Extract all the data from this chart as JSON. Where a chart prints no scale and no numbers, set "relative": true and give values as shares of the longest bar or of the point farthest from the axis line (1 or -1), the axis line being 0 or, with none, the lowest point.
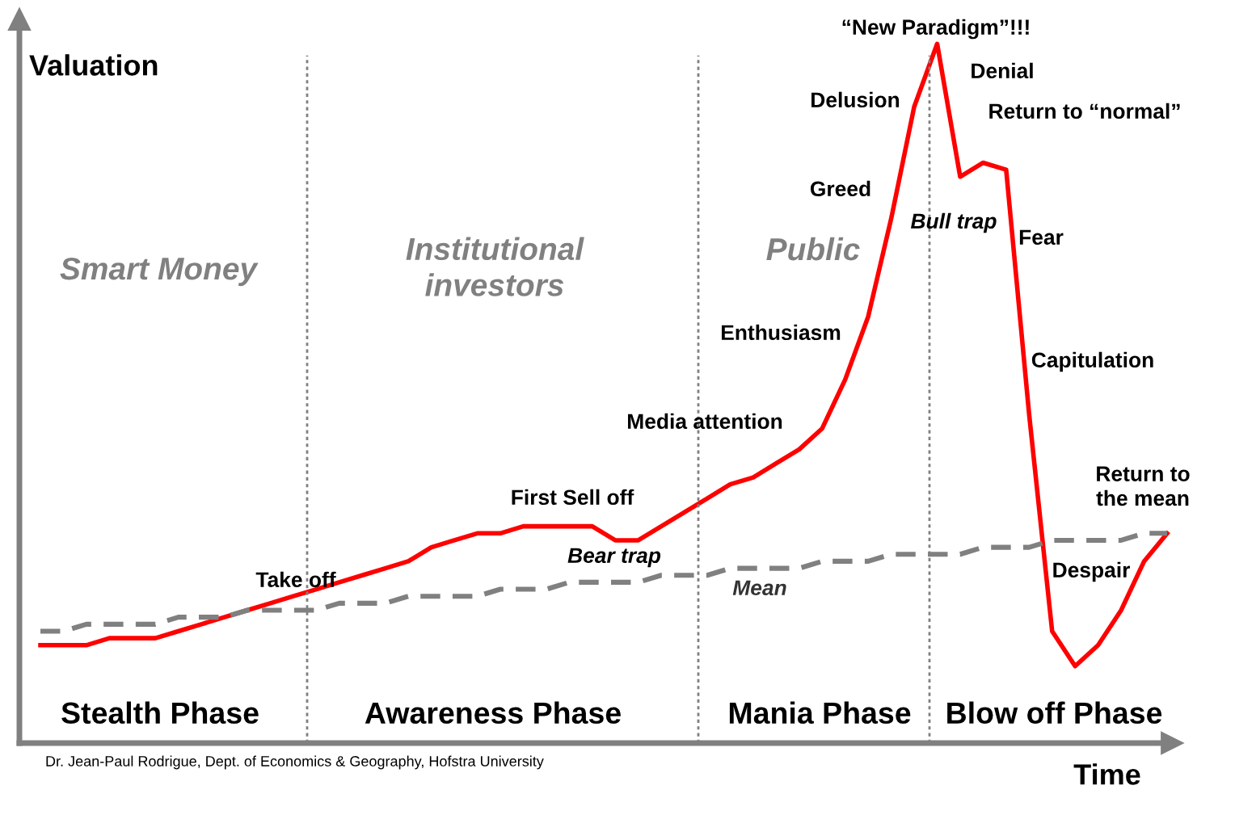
{
  "chart_data": {
    "type": "line",
    "relative": true,
    "xlabel": "Time",
    "ylabel": "Valuation",
    "grid": false,
    "legend": false,
    "marker": "none",
    "categories": [
      null,
      null,
      null,
      null,
      null,
      null,
      null,
      null,
      null,
      null,
      null,
      null,
      null,
      null,
      null,
      null,
      null,
      null,
      null,
      null,
      null,
      null,
      null,
      null,
      null,
      null,
      null,
      null,
      null,
      null,
      null,
      null,
      null,
      null,
      null,
      null,
      null,
      null,
      null,
      null,
      null,
      null,
      null,
      null,
      null,
      null,
      null,
      null,
      null,
      null
    ],
    "series": [
      {
        "color": "#ff0000",
        "line_style": "solid",
        "values": [
          0.14,
          0.14,
          0.14,
          0.15,
          0.15,
          0.15,
          0.16,
          0.17,
          0.18,
          0.19,
          0.2,
          0.21,
          0.22,
          0.23,
          0.24,
          0.25,
          0.26,
          0.28,
          0.29,
          0.3,
          0.3,
          0.31,
          0.31,
          0.31,
          0.31,
          0.29,
          0.29,
          0.31,
          0.33,
          0.35,
          0.37,
          0.38,
          0.4,
          0.42,
          0.45,
          0.52,
          0.61,
          0.75,
          0.91,
          1.0,
          0.81,
          0.83,
          0.82,
          0.47,
          0.16,
          0.11,
          0.14,
          0.19,
          0.26,
          0.3
        ]
      },
      {
        "color": "#808080",
        "line_style": "dashed",
        "values": [
          0.16,
          0.16,
          0.17,
          0.17,
          0.17,
          0.17,
          0.18,
          0.18,
          0.18,
          0.19,
          0.19,
          0.19,
          0.19,
          0.2,
          0.2,
          0.2,
          0.21,
          0.21,
          0.21,
          0.21,
          0.22,
          0.22,
          0.22,
          0.23,
          0.23,
          0.23,
          0.23,
          0.24,
          0.24,
          0.24,
          0.25,
          0.25,
          0.25,
          0.25,
          0.26,
          0.26,
          0.26,
          0.27,
          0.27,
          0.27,
          0.27,
          0.28,
          0.28,
          0.28,
          0.29,
          0.29,
          0.29,
          0.29,
          0.3,
          0.3
        ]
      }
    ],
    "annotations": [
      "Take off",
      "First Sell off",
      "Bear trap",
      "Media attention",
      "Mean",
      "Enthusiasm",
      "Greed",
      "Delusion",
      "“New Paradigm”!!!",
      "Denial",
      "Bull trap",
      "Return to “normal”",
      "Fear",
      "Capitulation",
      "Return to\nthe mean",
      "Despair",
      "Smart Money",
      "Institutional\ninvestors",
      "Public",
      "Stealth Phase",
      "Awareness Phase",
      "Mania Phase",
      "Blow off Phase",
      "Dr. Jean-Paul Rodrigue, Dept. of Economics & Geography, Hofstra University"
    ]
  }
}
